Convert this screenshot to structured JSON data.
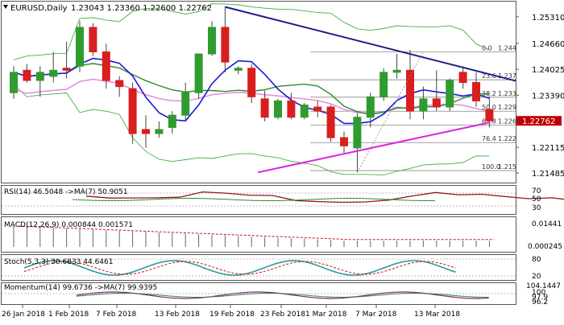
{
  "header": {
    "symbol": "EURUSD,Daily",
    "ohlc": "1.23043 1.23360 1.22600 1.22762"
  },
  "colors": {
    "up": "#2e9c2e",
    "down": "#d81e1e",
    "trend": "#1c1c8a",
    "ma_fast": "#1a1ad8",
    "ma_slow": "#2e8b2e",
    "ma_long": "#e890e0",
    "bollinger": "#44b044",
    "support_line": "#e020e0",
    "current_price_bg": "#c00000",
    "fib": "#888888"
  },
  "price_axis": [
    "1.25310",
    "1.24660",
    "1.24025",
    "1.23390",
    "1.22115",
    "1.21485"
  ],
  "current_price": "1.22762",
  "fib_levels": [
    {
      "label": "0.0",
      "value": "1.24452"
    },
    {
      "label": "23.6",
      "value": "1.23766"
    },
    {
      "label": "38.2",
      "value": "1.23341"
    },
    {
      "label": "50.0",
      "value": "1.22998"
    },
    {
      "label": "61.8",
      "value": "1.22655"
    },
    {
      "label": "76.4",
      "value": "1.22230"
    },
    {
      "label": "100.0",
      "value": "1.21544"
    }
  ],
  "rsi": {
    "title": "RSI(14) 46.5048 ->MA(7) 50.9051",
    "axis": [
      "70",
      "50",
      "30"
    ]
  },
  "macd": {
    "title": "MACD(12,26,9) 0.000844 0.001571",
    "axis": [
      "0.01441",
      "0.000245"
    ]
  },
  "stoch": {
    "title": "Stoch(5,3,3) 30.6833 44.6461",
    "axis": [
      "80",
      "20"
    ]
  },
  "momentum": {
    "title": "Momentum(14) 99.6736 ->MA(7) 99.9395",
    "axis": [
      "104.1447",
      "100",
      "97.9",
      "96.2"
    ]
  },
  "x_axis": [
    "26 Jan 2018",
    "1 Feb 2018",
    "7 Feb 2018",
    "13 Feb 2018",
    "19 Feb 2018",
    "23 Feb 2018",
    "1 Mar 2018",
    "7 Mar 2018",
    "13 Mar 2018"
  ],
  "chart_data": {
    "type": "candlestick",
    "ylim": [
      1.2125,
      1.2568
    ],
    "candles": [
      {
        "o": 1.2345,
        "h": 1.241,
        "l": 1.233,
        "c": 1.2395
      },
      {
        "o": 1.24,
        "h": 1.2415,
        "l": 1.237,
        "c": 1.2375
      },
      {
        "o": 1.2375,
        "h": 1.241,
        "l": 1.2335,
        "c": 1.2395
      },
      {
        "o": 1.2385,
        "h": 1.2445,
        "l": 1.237,
        "c": 1.24
      },
      {
        "o": 1.2405,
        "h": 1.247,
        "l": 1.238,
        "c": 1.24
      },
      {
        "o": 1.241,
        "h": 1.252,
        "l": 1.2395,
        "c": 1.2505
      },
      {
        "o": 1.2505,
        "h": 1.2515,
        "l": 1.2435,
        "c": 1.2445
      },
      {
        "o": 1.2445,
        "h": 1.2465,
        "l": 1.2355,
        "c": 1.2375
      },
      {
        "o": 1.2375,
        "h": 1.2385,
        "l": 1.2335,
        "c": 1.236
      },
      {
        "o": 1.2355,
        "h": 1.237,
        "l": 1.222,
        "c": 1.2245
      },
      {
        "o": 1.2255,
        "h": 1.229,
        "l": 1.221,
        "c": 1.2245
      },
      {
        "o": 1.2245,
        "h": 1.2275,
        "l": 1.2235,
        "c": 1.2255
      },
      {
        "o": 1.226,
        "h": 1.23,
        "l": 1.2245,
        "c": 1.229
      },
      {
        "o": 1.229,
        "h": 1.237,
        "l": 1.2275,
        "c": 1.2345
      },
      {
        "o": 1.2345,
        "h": 1.244,
        "l": 1.233,
        "c": 1.244
      },
      {
        "o": 1.244,
        "h": 1.252,
        "l": 1.2435,
        "c": 1.2505
      },
      {
        "o": 1.2505,
        "h": 1.2555,
        "l": 1.2395,
        "c": 1.242
      },
      {
        "o": 1.24,
        "h": 1.241,
        "l": 1.239,
        "c": 1.2405
      },
      {
        "o": 1.2405,
        "h": 1.2415,
        "l": 1.232,
        "c": 1.2335
      },
      {
        "o": 1.233,
        "h": 1.235,
        "l": 1.2275,
        "c": 1.2285
      },
      {
        "o": 1.2285,
        "h": 1.233,
        "l": 1.228,
        "c": 1.2325
      },
      {
        "o": 1.2325,
        "h": 1.2345,
        "l": 1.228,
        "c": 1.2285
      },
      {
        "o": 1.2285,
        "h": 1.232,
        "l": 1.228,
        "c": 1.2315
      },
      {
        "o": 1.231,
        "h": 1.2325,
        "l": 1.2285,
        "c": 1.23
      },
      {
        "o": 1.231,
        "h": 1.2315,
        "l": 1.2225,
        "c": 1.2235
      },
      {
        "o": 1.2235,
        "h": 1.225,
        "l": 1.2195,
        "c": 1.2215
      },
      {
        "o": 1.221,
        "h": 1.2295,
        "l": 1.215,
        "c": 1.2285
      },
      {
        "o": 1.2285,
        "h": 1.2345,
        "l": 1.226,
        "c": 1.2335
      },
      {
        "o": 1.2335,
        "h": 1.2405,
        "l": 1.2325,
        "c": 1.2395
      },
      {
        "o": 1.2395,
        "h": 1.244,
        "l": 1.238,
        "c": 1.24
      },
      {
        "o": 1.24,
        "h": 1.245,
        "l": 1.228,
        "c": 1.23
      },
      {
        "o": 1.23,
        "h": 1.236,
        "l": 1.228,
        "c": 1.233
      },
      {
        "o": 1.233,
        "h": 1.24,
        "l": 1.23,
        "c": 1.231
      },
      {
        "o": 1.231,
        "h": 1.238,
        "l": 1.23,
        "c": 1.2375
      },
      {
        "o": 1.2395,
        "h": 1.241,
        "l": 1.2355,
        "c": 1.237
      },
      {
        "o": 1.237,
        "h": 1.2395,
        "l": 1.231,
        "c": 1.2325
      },
      {
        "o": 1.2304,
        "h": 1.2336,
        "l": 1.226,
        "c": 1.2276
      }
    ]
  }
}
